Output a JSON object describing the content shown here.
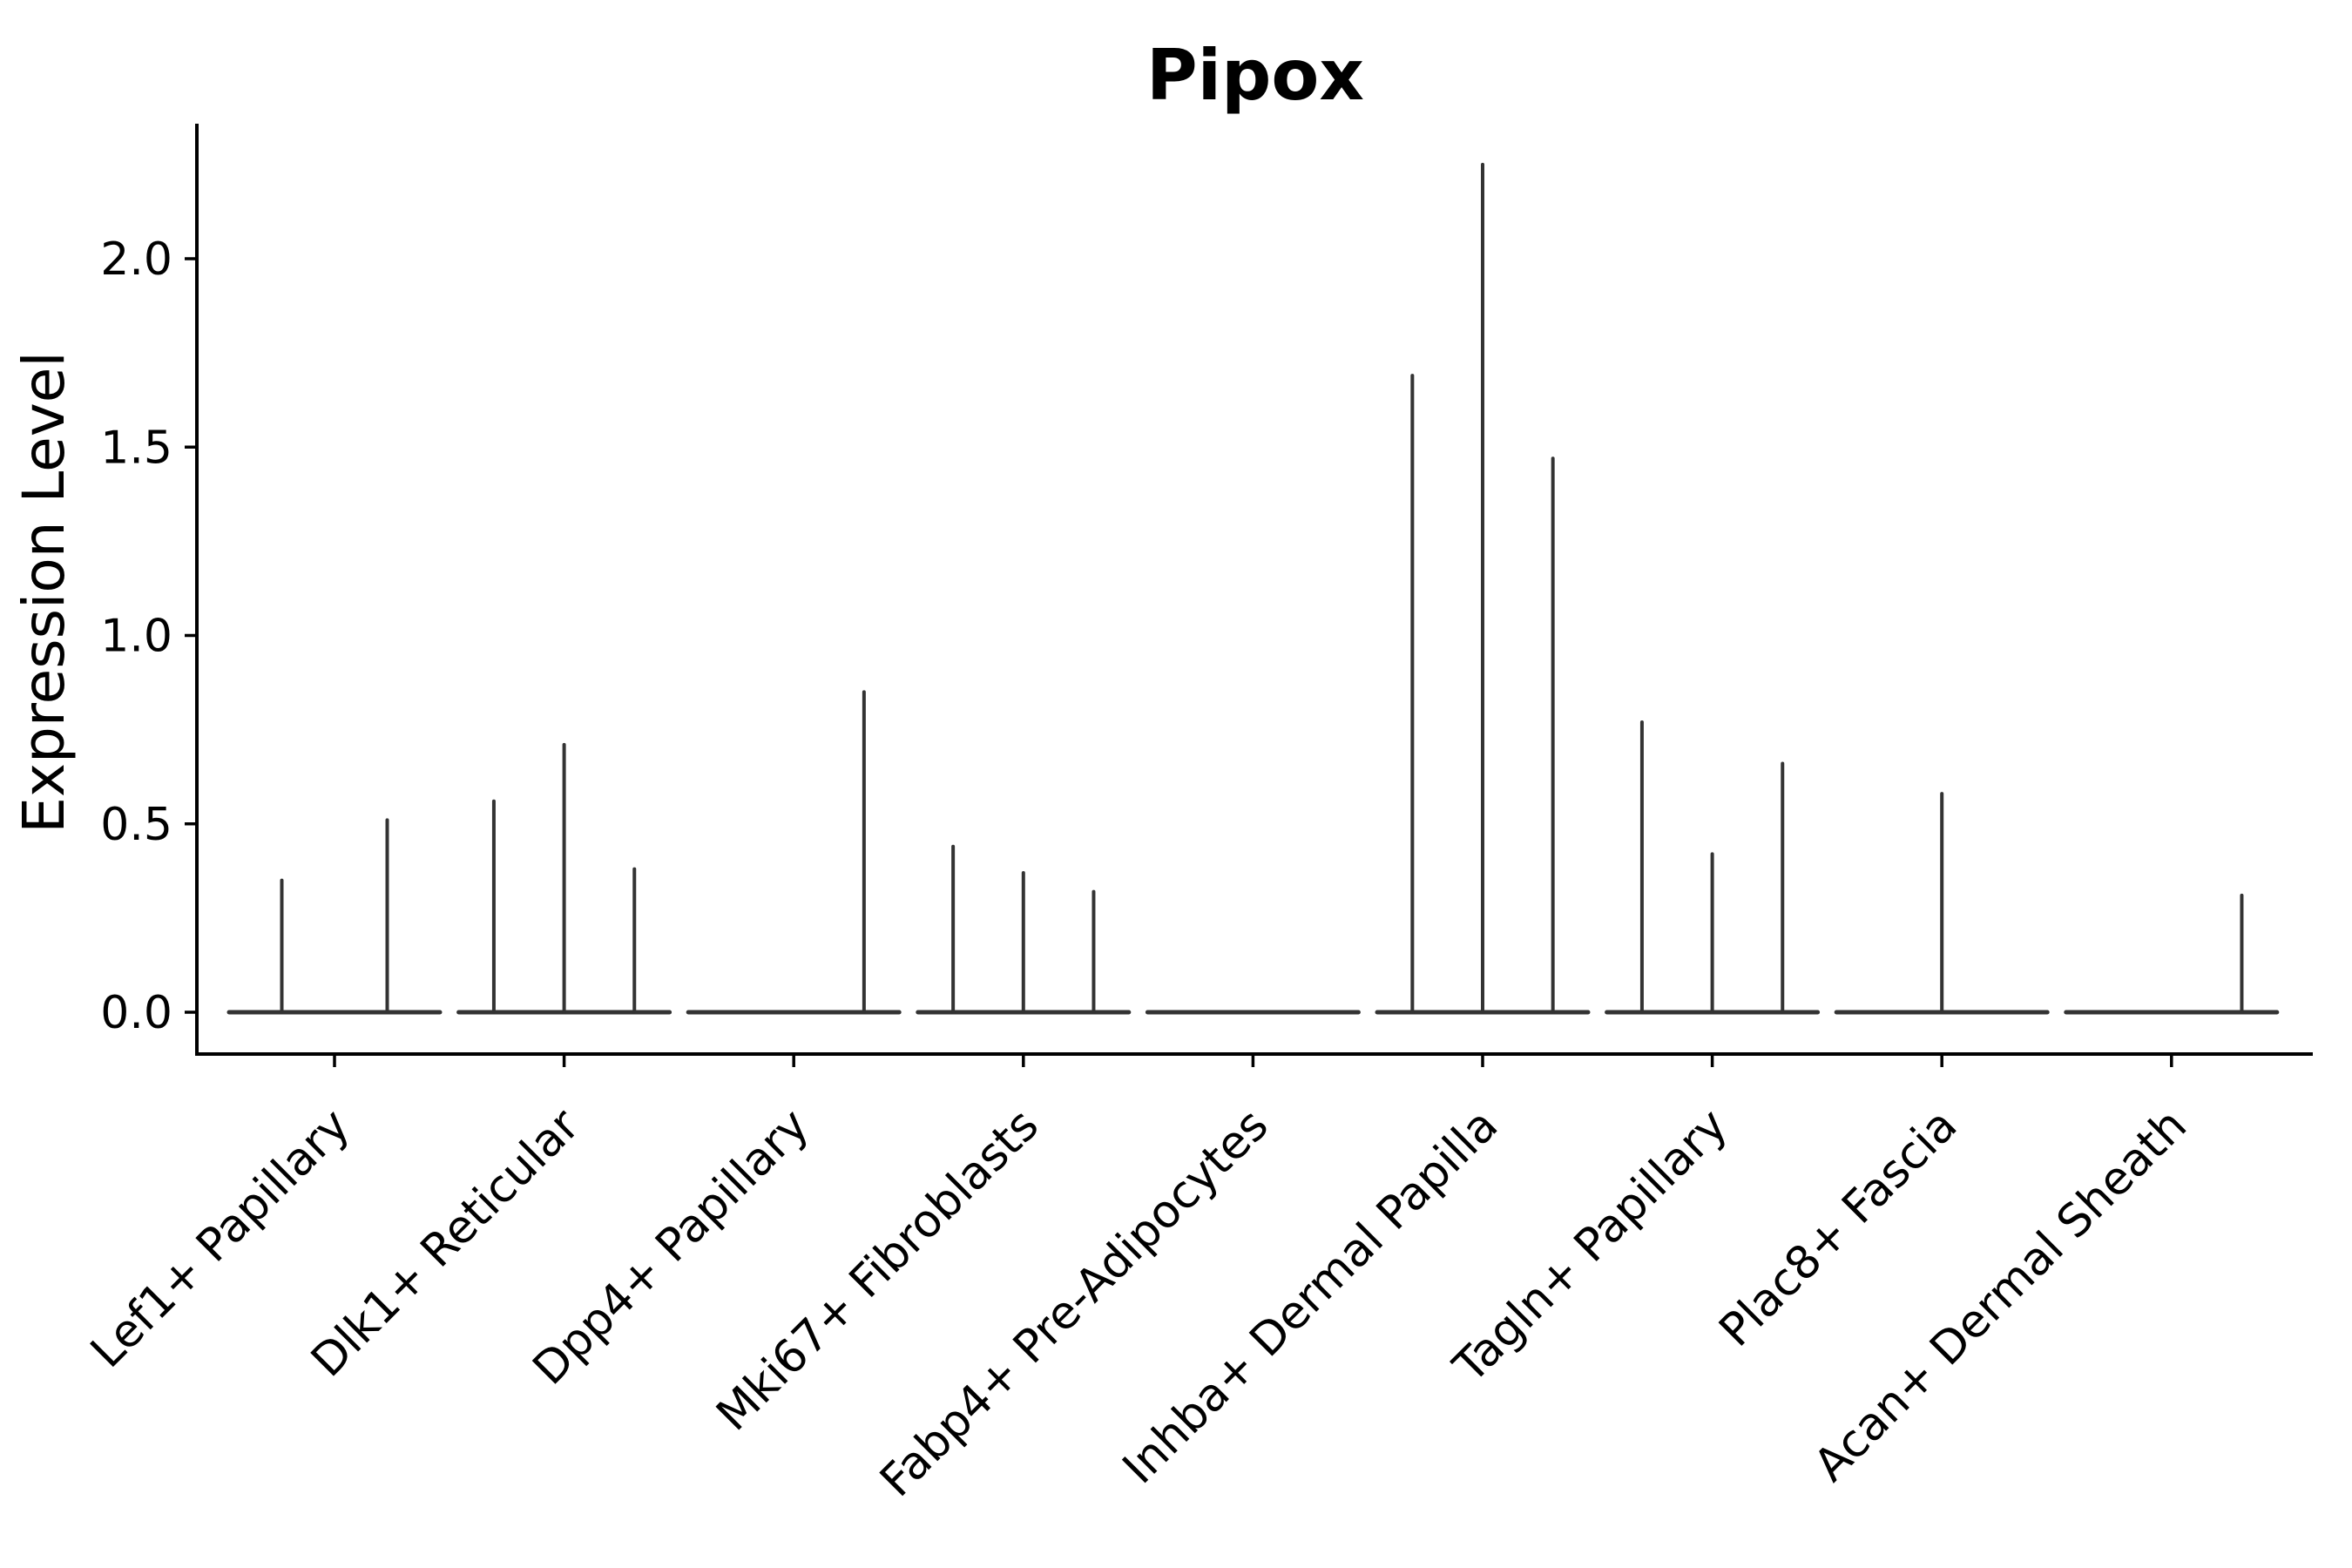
{
  "figure": {
    "background": "#ffffff"
  },
  "chart_data": {
    "type": "violin",
    "title": "Pipox",
    "ylabel": "Expression Level",
    "xlabel": "",
    "grid": false,
    "legend": false,
    "ytick_labels": [
      "0.0",
      "0.5",
      "1.0",
      "1.5",
      "2.0"
    ],
    "ytick_values": [
      0.0,
      0.5,
      1.0,
      1.5,
      2.0
    ],
    "ylim": [
      -0.11,
      2.36
    ],
    "baseline_value": 0.0,
    "categories": [
      "Lef1+ Papillary",
      "Dlk1+ Reticular",
      "Dpp4+ Papillary",
      "Mki67+ Fibroblasts",
      "Fabp4+ Pre-Adipocytes",
      "Inhba+ Dermal Papilla",
      "Tagln+ Papillary",
      "Plac8+ Fascia",
      "Acan+ Dermal Sheath"
    ],
    "violins": [
      {
        "category": "Lef1+ Papillary",
        "sub_violins": 2,
        "spikes": [
          {
            "slot": 0,
            "value": 0.35
          },
          {
            "slot": 1,
            "value": 0.51
          }
        ]
      },
      {
        "category": "Dlk1+ Reticular",
        "sub_violins": 3,
        "spikes": [
          {
            "slot": 0,
            "value": 0.56
          },
          {
            "slot": 1,
            "value": 0.71
          },
          {
            "slot": 2,
            "value": 0.38
          }
        ]
      },
      {
        "category": "Dpp4+ Papillary",
        "sub_violins": 3,
        "spikes": [
          {
            "slot": 2,
            "value": 0.85
          }
        ]
      },
      {
        "category": "Mki67+ Fibroblasts",
        "sub_violins": 3,
        "spikes": [
          {
            "slot": 0,
            "value": 0.44
          },
          {
            "slot": 1,
            "value": 0.37
          },
          {
            "slot": 2,
            "value": 0.32
          }
        ]
      },
      {
        "category": "Fabp4+ Pre-Adipocytes",
        "sub_violins": 3,
        "spikes": []
      },
      {
        "category": "Inhba+ Dermal Papilla",
        "sub_violins": 3,
        "spikes": [
          {
            "slot": 0,
            "value": 1.69
          },
          {
            "slot": 1,
            "value": 2.25
          },
          {
            "slot": 2,
            "value": 1.47
          }
        ]
      },
      {
        "category": "Tagln+ Papillary",
        "sub_violins": 3,
        "spikes": [
          {
            "slot": 0,
            "value": 0.77
          },
          {
            "slot": 1,
            "value": 0.42
          },
          {
            "slot": 2,
            "value": 0.66
          }
        ]
      },
      {
        "category": "Plac8+ Fascia",
        "sub_violins": 3,
        "spikes": [
          {
            "slot": 1,
            "value": 0.58
          }
        ]
      },
      {
        "category": "Acan+ Dermal Sheath",
        "sub_violins": 3,
        "spikes": [
          {
            "slot": 2,
            "value": 0.31
          }
        ]
      }
    ],
    "colors": {
      "violin": "#333333",
      "axis": "#000000",
      "text": "#000000",
      "background": "#ffffff"
    }
  }
}
